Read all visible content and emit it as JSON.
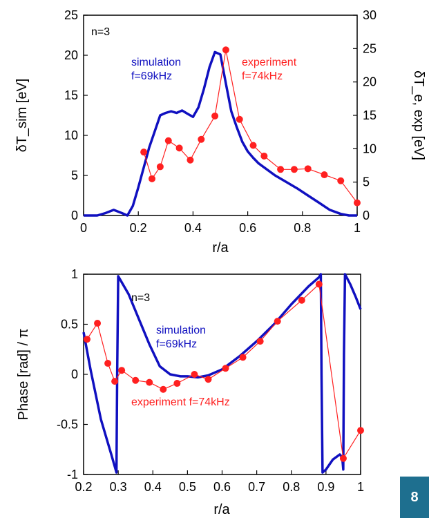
{
  "colors": {
    "simulation": "#1010c0",
    "experiment": "#ff2020",
    "badge": "#1e6f8f"
  },
  "page_number": "8",
  "chart_data": [
    {
      "type": "line",
      "panel": "top",
      "xlabel": "r/a",
      "ylabel_left": "δT_sim [eV]",
      "ylabel_right": "δT_e, exp [eV]",
      "xlim": [
        0,
        1
      ],
      "ylim_left": [
        0,
        25
      ],
      "ylim_right": [
        0,
        30
      ],
      "xticks": [
        "0",
        "0.2",
        "0.4",
        "0.6",
        "0.8",
        "1"
      ],
      "yticks_left": [
        "0",
        "5",
        "10",
        "15",
        "20",
        "25"
      ],
      "yticks_right": [
        "0",
        "5",
        "10",
        "15",
        "20",
        "25",
        "30"
      ],
      "annotations": {
        "mode": "n=3",
        "sim_line1": "simulation",
        "sim_line2": "f=69kHz",
        "exp_line1": "experiment",
        "exp_line2": "f=74kHz"
      },
      "series": [
        {
          "key": "simulation",
          "axis": "left",
          "x": [
            0,
            0.05,
            0.08,
            0.11,
            0.14,
            0.16,
            0.18,
            0.2,
            0.22,
            0.24,
            0.26,
            0.28,
            0.3,
            0.32,
            0.34,
            0.36,
            0.38,
            0.4,
            0.42,
            0.44,
            0.46,
            0.48,
            0.5,
            0.52,
            0.54,
            0.56,
            0.58,
            0.6,
            0.62,
            0.64,
            0.66,
            0.7,
            0.74,
            0.78,
            0.82,
            0.86,
            0.9,
            0.94,
            0.97,
            1.0
          ],
          "y": [
            0,
            0,
            0.3,
            0.7,
            0.3,
            0,
            1.2,
            3.5,
            6,
            8.5,
            10.5,
            12.5,
            12.8,
            13,
            12.8,
            13.1,
            12.7,
            12.3,
            13.5,
            15.8,
            18.5,
            20.4,
            20.1,
            16.5,
            13,
            11,
            9.2,
            8,
            7.2,
            6.5,
            6,
            5,
            4.2,
            3.4,
            2.5,
            1.6,
            0.7,
            0.2,
            0,
            0
          ]
        },
        {
          "key": "experiment",
          "axis": "right",
          "x": [
            0.22,
            0.25,
            0.28,
            0.31,
            0.35,
            0.39,
            0.43,
            0.48,
            0.52,
            0.57,
            0.62,
            0.66,
            0.72,
            0.77,
            0.82,
            0.88,
            0.94,
            1.0
          ],
          "y": [
            9.5,
            5.5,
            7.3,
            11.2,
            10.1,
            8.3,
            11.4,
            14.9,
            24.8,
            14.4,
            10.5,
            8.9,
            6.9,
            6.9,
            7.0,
            6.1,
            5.2,
            1.9
          ]
        }
      ]
    },
    {
      "type": "line",
      "panel": "bottom",
      "xlabel": "r/a",
      "ylabel": "Phase [rad] / π",
      "xlim": [
        0.2,
        1
      ],
      "ylim": [
        -1,
        1
      ],
      "xticks": [
        "0.2",
        "0.3",
        "0.4",
        "0.5",
        "0.6",
        "0.7",
        "0.8",
        "0.9",
        "1"
      ],
      "yticks": [
        "-1",
        "-0.5",
        "0",
        "0.5",
        "1"
      ],
      "annotations": {
        "mode": "n=3",
        "sim_line1": "simulation",
        "sim_line2": "f=69kHz",
        "exp_line1": "experiment f=74kHz"
      },
      "series": [
        {
          "key": "simulation",
          "x": [
            0.2,
            0.22,
            0.25,
            0.28,
            0.295,
            0.297,
            0.3,
            0.33,
            0.36,
            0.39,
            0.42,
            0.45,
            0.48,
            0.5,
            0.53,
            0.56,
            0.6,
            0.65,
            0.7,
            0.75,
            0.8,
            0.85,
            0.88,
            0.885,
            0.887,
            0.89,
            0.9,
            0.92,
            0.94,
            0.947,
            0.95,
            0.952,
            0.955,
            0.97,
            0.985,
            1.0
          ],
          "y": [
            0.42,
            0.05,
            -0.45,
            -0.8,
            -0.98,
            0.0,
            0.98,
            0.8,
            0.55,
            0.3,
            0.08,
            0.0,
            -0.02,
            -0.02,
            -0.03,
            -0.01,
            0.05,
            0.18,
            0.33,
            0.5,
            0.7,
            0.88,
            0.97,
            1.0,
            0.0,
            -0.98,
            -0.95,
            -0.85,
            -0.8,
            -0.83,
            -0.95,
            0.2,
            1.0,
            0.9,
            0.78,
            0.65
          ]
        },
        {
          "key": "experiment",
          "x": [
            0.21,
            0.24,
            0.27,
            0.29,
            0.31,
            0.35,
            0.39,
            0.43,
            0.47,
            0.52,
            0.56,
            0.61,
            0.66,
            0.71,
            0.76,
            0.83,
            0.88,
            0.95,
            1.0
          ],
          "y": [
            0.35,
            0.51,
            0.11,
            -0.07,
            0.04,
            -0.06,
            -0.08,
            -0.15,
            -0.09,
            0.0,
            -0.05,
            0.06,
            0.17,
            0.33,
            0.53,
            0.74,
            0.9,
            -0.84,
            -0.56
          ]
        }
      ]
    }
  ]
}
